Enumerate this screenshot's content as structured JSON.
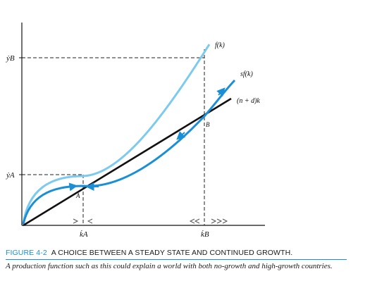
{
  "chart_data": {
    "type": "line",
    "title": "",
    "xlabel": "",
    "ylabel": "",
    "x_ticks": [
      "k̇A",
      "k̇B"
    ],
    "y_ticks": [
      "ẏB",
      "ẏA"
    ],
    "points": [
      "A",
      "B"
    ],
    "series": [
      {
        "name": "f(k)",
        "color": "#7ccaf0"
      },
      {
        "name": "sf(k)",
        "color": "#1a8fd6"
      },
      {
        "name": "(n + d)k",
        "color": "#111111"
      }
    ],
    "caption": {
      "number": "FIGURE 4-2",
      "title": "A CHOICE BETWEEN A STEADY STATE AND CONTINUED GROWTH.",
      "text": "A production function such as this could explain a world with both no-growth and high-growth countries."
    }
  }
}
